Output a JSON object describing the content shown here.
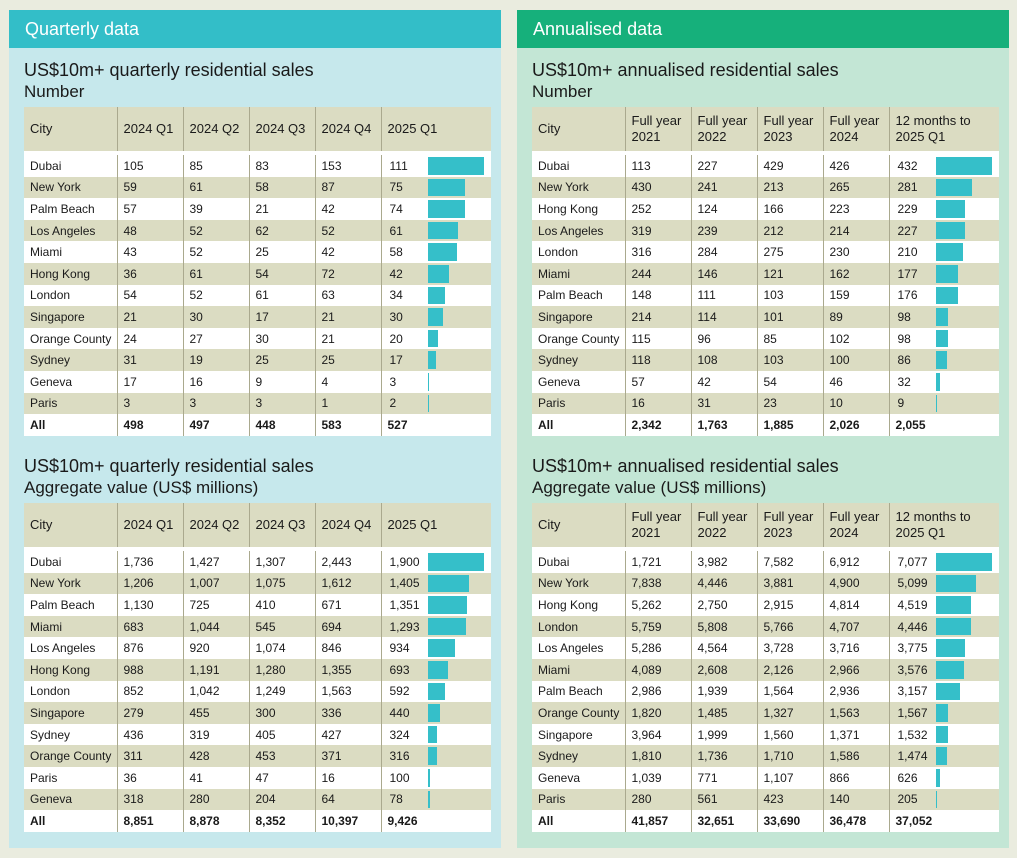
{
  "quarterly": {
    "banner": "Quarterly data",
    "number": {
      "title": "US$10m+ quarterly residential sales",
      "subtitle": "Number",
      "headers": [
        "City",
        "2024 Q1",
        "2024 Q2",
        "2024 Q3",
        "2024 Q4",
        "2025 Q1"
      ],
      "rows": [
        [
          "Dubai",
          "105",
          "85",
          "83",
          "153",
          "111"
        ],
        [
          "New York",
          "59",
          "61",
          "58",
          "87",
          "75"
        ],
        [
          "Palm Beach",
          "57",
          "39",
          "21",
          "42",
          "74"
        ],
        [
          "Los Angeles",
          "48",
          "52",
          "62",
          "52",
          "61"
        ],
        [
          "Miami",
          "43",
          "52",
          "25",
          "42",
          "58"
        ],
        [
          "Hong Kong",
          "36",
          "61",
          "54",
          "72",
          "42"
        ],
        [
          "London",
          "54",
          "52",
          "61",
          "63",
          "34"
        ],
        [
          "Singapore",
          "21",
          "30",
          "17",
          "21",
          "30"
        ],
        [
          "Orange County",
          "24",
          "27",
          "30",
          "21",
          "20"
        ],
        [
          "Sydney",
          "31",
          "19",
          "25",
          "25",
          "17"
        ],
        [
          "Geneva",
          "17",
          "16",
          "9",
          "4",
          "3"
        ],
        [
          "Paris",
          "3",
          "3",
          "3",
          "1",
          "2"
        ]
      ],
      "total": [
        "All",
        "498",
        "497",
        "448",
        "583",
        "527"
      ]
    },
    "value": {
      "title": "US$10m+ quarterly residential sales",
      "subtitle": "Aggregate value (US$ millions)",
      "headers": [
        "City",
        "2024 Q1",
        "2024 Q2",
        "2024 Q3",
        "2024 Q4",
        "2025 Q1"
      ],
      "rows": [
        [
          "Dubai",
          "1,736",
          "1,427",
          "1,307",
          "2,443",
          "1,900"
        ],
        [
          "New York",
          "1,206",
          "1,007",
          "1,075",
          "1,612",
          "1,405"
        ],
        [
          "Palm Beach",
          "1,130",
          "725",
          "410",
          "671",
          "1,351"
        ],
        [
          "Miami",
          "683",
          "1,044",
          "545",
          "694",
          "1,293"
        ],
        [
          "Los Angeles",
          "876",
          "920",
          "1,074",
          "846",
          "934"
        ],
        [
          "Hong Kong",
          "988",
          "1,191",
          "1,280",
          "1,355",
          "693"
        ],
        [
          "London",
          "852",
          "1,042",
          "1,249",
          "1,563",
          "592"
        ],
        [
          "Singapore",
          "279",
          "455",
          "300",
          "336",
          "440"
        ],
        [
          "Sydney",
          "436",
          "319",
          "405",
          "427",
          "324"
        ],
        [
          "Orange County",
          "311",
          "428",
          "453",
          "371",
          "316"
        ],
        [
          "Paris",
          "36",
          "41",
          "47",
          "16",
          "100"
        ],
        [
          "Geneva",
          "318",
          "280",
          "204",
          "64",
          "78"
        ]
      ],
      "total": [
        "All",
        "8,851",
        "8,878",
        "8,352",
        "10,397",
        "9,426"
      ]
    }
  },
  "annualised": {
    "banner": "Annualised data",
    "number": {
      "title": "US$10m+ annualised residential sales",
      "subtitle": "Number",
      "headers": [
        "City",
        "Full year 2021",
        "Full year 2022",
        "Full year 2023",
        "Full year 2024",
        "12 months to 2025 Q1"
      ],
      "rows": [
        [
          "Dubai",
          "113",
          "227",
          "429",
          "426",
          "432"
        ],
        [
          "New York",
          "430",
          "241",
          "213",
          "265",
          "281"
        ],
        [
          "Hong Kong",
          "252",
          "124",
          "166",
          "223",
          "229"
        ],
        [
          "Los Angeles",
          "319",
          "239",
          "212",
          "214",
          "227"
        ],
        [
          "London",
          "316",
          "284",
          "275",
          "230",
          "210"
        ],
        [
          "Miami",
          "244",
          "146",
          "121",
          "162",
          "177"
        ],
        [
          "Palm Beach",
          "148",
          "111",
          "103",
          "159",
          "176"
        ],
        [
          "Singapore",
          "214",
          "114",
          "101",
          "89",
          "98"
        ],
        [
          "Orange County",
          "115",
          "96",
          "85",
          "102",
          "98"
        ],
        [
          "Sydney",
          "118",
          "108",
          "103",
          "100",
          "86"
        ],
        [
          "Geneva",
          "57",
          "42",
          "54",
          "46",
          "32"
        ],
        [
          "Paris",
          "16",
          "31",
          "23",
          "10",
          "9"
        ]
      ],
      "total": [
        "All",
        "2,342",
        "1,763",
        "1,885",
        "2,026",
        "2,055"
      ]
    },
    "value": {
      "title": "US$10m+ annualised residential sales",
      "subtitle": "Aggregate value (US$ millions)",
      "headers": [
        "City",
        "Full year 2021",
        "Full year 2022",
        "Full year 2023",
        "Full year 2024",
        "12 months to 2025 Q1"
      ],
      "rows": [
        [
          "Dubai",
          "1,721",
          "3,982",
          "7,582",
          "6,912",
          "7,077"
        ],
        [
          "New York",
          "7,838",
          "4,446",
          "3,881",
          "4,900",
          "5,099"
        ],
        [
          "Hong Kong",
          "5,262",
          "2,750",
          "2,915",
          "4,814",
          "4,519"
        ],
        [
          "London",
          "5,759",
          "5,808",
          "5,766",
          "4,707",
          "4,446"
        ],
        [
          "Los Angeles",
          "5,286",
          "4,564",
          "3,728",
          "3,716",
          "3,775"
        ],
        [
          "Miami",
          "4,089",
          "2,608",
          "2,126",
          "2,966",
          "3,576"
        ],
        [
          "Palm Beach",
          "2,986",
          "1,939",
          "1,564",
          "2,936",
          "3,157"
        ],
        [
          "Orange County",
          "1,820",
          "1,485",
          "1,327",
          "1,563",
          "1,567"
        ],
        [
          "Singapore",
          "3,964",
          "1,999",
          "1,560",
          "1,371",
          "1,532"
        ],
        [
          "Sydney",
          "1,810",
          "1,736",
          "1,710",
          "1,586",
          "1,474"
        ],
        [
          "Geneva",
          "1,039",
          "771",
          "1,107",
          "866",
          "626"
        ],
        [
          "Paris",
          "280",
          "561",
          "423",
          "140",
          "205"
        ]
      ],
      "total": [
        "All",
        "41,857",
        "32,651",
        "33,690",
        "36,478",
        "37,052"
      ]
    }
  },
  "colors": {
    "bar": "#35bfc9",
    "quarterly_banner": "#33bec8",
    "annualised_banner": "#16b07b"
  },
  "chart_data": [
    {
      "type": "table",
      "title": "US$10m+ quarterly residential sales",
      "subtitle": "Number"
    },
    {
      "type": "table",
      "title": "US$10m+ quarterly residential sales",
      "subtitle": "Aggregate value (US$ millions)"
    },
    {
      "type": "table",
      "title": "US$10m+ annualised residential sales",
      "subtitle": "Number"
    },
    {
      "type": "table",
      "title": "US$10m+ annualised residential sales",
      "subtitle": "Aggregate value (US$ millions)"
    }
  ]
}
